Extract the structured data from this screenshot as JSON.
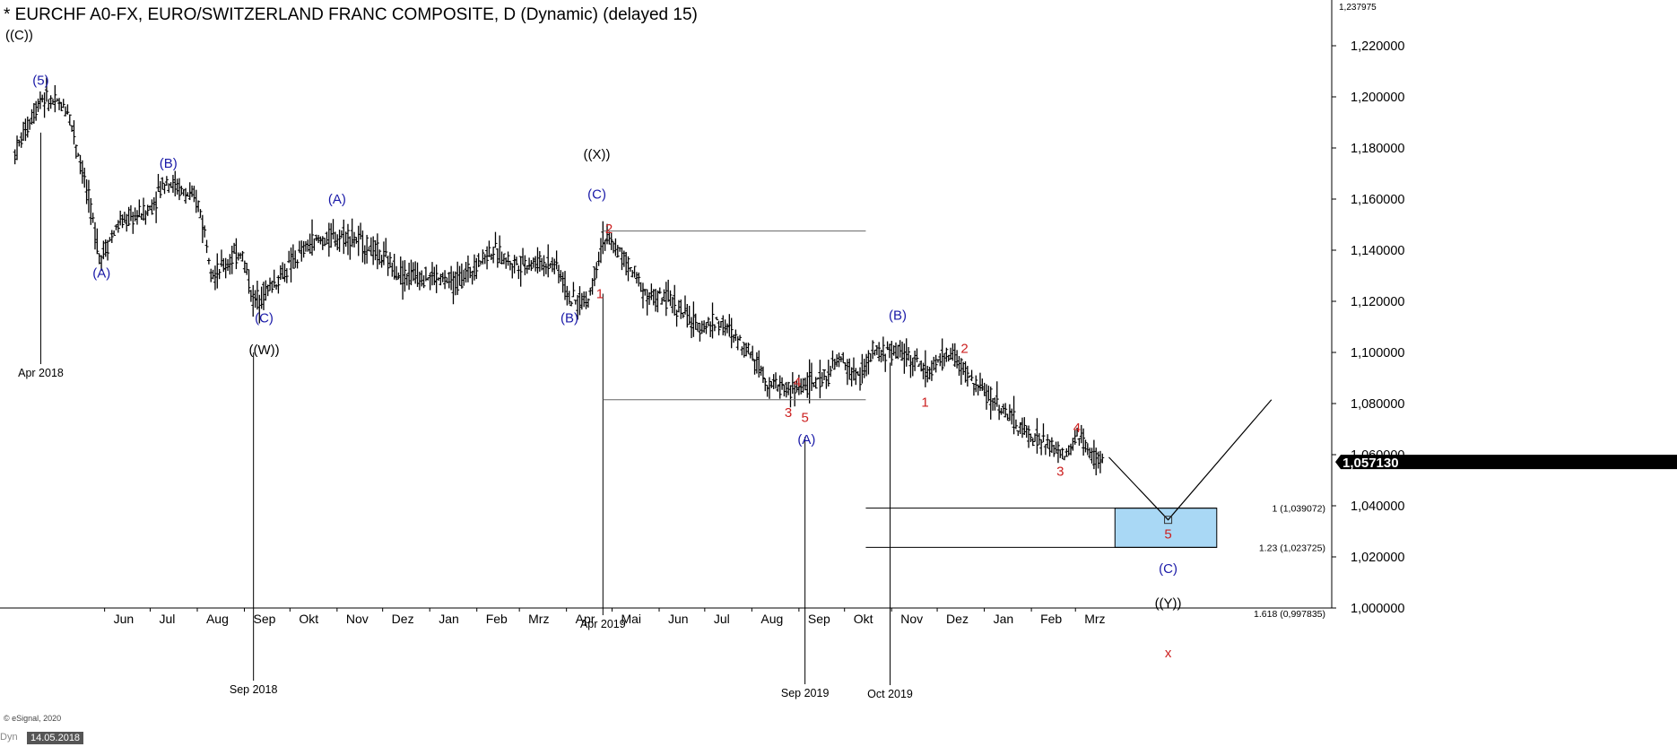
{
  "header": {
    "title": "* EURCHF A0-FX, EURO/SWITZERLAND FRANC COMPOSITE, D (Dynamic) (delayed 15)",
    "degree_label": "((C))"
  },
  "footer": {
    "credit": "© eSignal, 2020",
    "mode": "Dyn",
    "cursor_date": "14.05.2018"
  },
  "colors": {
    "price_bars": "#000000",
    "wave_blue": "#1a1aa8",
    "wave_red": "#cc1f1f",
    "wave_black": "#000000",
    "target_zone": "#a9d8f5",
    "last_price_bg": "#000000",
    "last_price_text": "#ffffff"
  },
  "chart_data": {
    "type": "ohlc",
    "instrument": "EURCHF",
    "ylim": [
      1.0,
      1.2379
    ],
    "y_ticks": [
      "1,000000",
      "1,020000",
      "1,040000",
      "1,060000",
      "1,080000",
      "1,100000",
      "1,120000",
      "1,140000",
      "1,160000",
      "1,180000",
      "1,200000",
      "1,220000"
    ],
    "y_tick_values": [
      1.0,
      1.02,
      1.04,
      1.06,
      1.08,
      1.1,
      1.12,
      1.14,
      1.16,
      1.18,
      1.2,
      1.22
    ],
    "top_price_label": "1,237975",
    "last_price_label": "1,057130",
    "last_price": 1.05713,
    "x_ticks": [
      "Jun",
      "Jul",
      "Aug",
      "Sep",
      "Okt",
      "Nov",
      "Dez",
      "Jan",
      "Feb",
      "Mrz",
      "Apr",
      "Mai",
      "Jun",
      "Jul",
      "Aug",
      "Sep",
      "Okt",
      "Nov",
      "Dez",
      "Jan",
      "Feb",
      "Mrz"
    ],
    "price_path": [
      [
        "2018-04-03",
        1.178
      ],
      [
        "2018-04-20",
        1.2
      ],
      [
        "2018-05-08",
        1.195
      ],
      [
        "2018-05-18",
        1.17
      ],
      [
        "2018-05-29",
        1.137
      ],
      [
        "2018-06-10",
        1.15
      ],
      [
        "2018-07-01",
        1.156
      ],
      [
        "2018-07-11",
        1.168
      ],
      [
        "2018-08-02",
        1.158
      ],
      [
        "2018-08-12",
        1.13
      ],
      [
        "2018-08-30",
        1.14
      ],
      [
        "2018-09-07",
        1.12
      ],
      [
        "2018-09-22",
        1.128
      ],
      [
        "2018-10-15",
        1.143
      ],
      [
        "2018-11-08",
        1.146
      ],
      [
        "2018-11-25",
        1.14
      ],
      [
        "2018-12-15",
        1.13
      ],
      [
        "2018-12-31",
        1.13
      ],
      [
        "2019-01-18",
        1.127
      ],
      [
        "2019-02-10",
        1.14
      ],
      [
        "2019-02-25",
        1.135
      ],
      [
        "2019-03-25",
        1.135
      ],
      [
        "2019-04-04",
        1.12
      ],
      [
        "2019-04-15",
        1.12
      ],
      [
        "2019-04-25",
        1.145
      ],
      [
        "2019-05-05",
        1.14
      ],
      [
        "2019-05-25",
        1.122
      ],
      [
        "2019-06-10",
        1.12
      ],
      [
        "2019-06-25",
        1.11
      ],
      [
        "2019-07-10",
        1.112
      ],
      [
        "2019-08-01",
        1.1
      ],
      [
        "2019-08-12",
        1.088
      ],
      [
        "2019-08-28",
        1.085
      ],
      [
        "2019-09-05",
        1.088
      ],
      [
        "2019-09-14",
        1.088
      ],
      [
        "2019-09-28",
        1.097
      ],
      [
        "2019-10-10",
        1.09
      ],
      [
        "2019-10-20",
        1.1
      ],
      [
        "2019-11-10",
        1.1
      ],
      [
        "2019-11-25",
        1.092
      ],
      [
        "2019-12-10",
        1.1
      ],
      [
        "2019-12-25",
        1.088
      ],
      [
        "2020-01-10",
        1.08
      ],
      [
        "2020-01-25",
        1.07
      ],
      [
        "2020-02-05",
        1.066
      ],
      [
        "2020-02-25",
        1.059
      ],
      [
        "2020-03-03",
        1.069
      ],
      [
        "2020-03-10",
        1.06
      ],
      [
        "2020-03-20",
        1.057
      ]
    ],
    "date_markers": [
      {
        "label": "Apr 2018",
        "date": "2018-04-20",
        "price": 1.186
      },
      {
        "label": "Sep 2018",
        "date": "2018-09-07",
        "price": 1.1
      },
      {
        "label": "Apr 2019",
        "date": "2019-04-25",
        "price": 1.123
      },
      {
        "label": "Sep 2019",
        "date": "2019-09-05",
        "price": 1.067
      },
      {
        "label": "Oct 2019",
        "date": "2019-10-31",
        "price": 1.096
      }
    ],
    "wave_labels": [
      {
        "text": "(5)",
        "date": "2018-04-20",
        "price": 1.2065,
        "color": "blue"
      },
      {
        "text": "(A)",
        "date": "2018-05-30",
        "price": 1.131,
        "color": "blue"
      },
      {
        "text": "(B)",
        "date": "2018-07-13",
        "price": 1.174,
        "color": "blue"
      },
      {
        "text": "(A)",
        "date": "2018-11-01",
        "price": 1.16,
        "color": "blue"
      },
      {
        "text": "(C)",
        "date": "2018-09-14",
        "price": 1.1135,
        "color": "blue"
      },
      {
        "text": "((W))",
        "date": "2018-09-14",
        "price": 1.101,
        "color": "black"
      },
      {
        "text": "((X))",
        "date": "2019-04-21",
        "price": 1.1775,
        "color": "black"
      },
      {
        "text": "(C)",
        "date": "2019-04-21",
        "price": 1.162,
        "color": "blue"
      },
      {
        "text": "2",
        "date": "2019-04-29",
        "price": 1.1485,
        "color": "red"
      },
      {
        "text": "1",
        "date": "2019-04-23",
        "price": 1.123,
        "color": "red"
      },
      {
        "text": "(B)",
        "date": "2019-04-03",
        "price": 1.1135,
        "color": "blue"
      },
      {
        "text": "3",
        "date": "2019-08-25",
        "price": 1.0765,
        "color": "red"
      },
      {
        "text": "4",
        "date": "2019-08-31",
        "price": 1.0885,
        "color": "red"
      },
      {
        "text": "5",
        "date": "2019-09-05",
        "price": 1.0745,
        "color": "red"
      },
      {
        "text": "(A)",
        "date": "2019-09-06",
        "price": 1.066,
        "color": "blue"
      },
      {
        "text": "(B)",
        "date": "2019-11-05",
        "price": 1.1145,
        "color": "blue"
      },
      {
        "text": "1",
        "date": "2019-11-23",
        "price": 1.0805,
        "color": "red"
      },
      {
        "text": "2",
        "date": "2019-12-19",
        "price": 1.1015,
        "color": "red"
      },
      {
        "text": "3",
        "date": "2020-02-20",
        "price": 1.0535,
        "color": "red"
      },
      {
        "text": "4",
        "date": "2020-03-02",
        "price": 1.0705,
        "color": "red"
      },
      {
        "text": "5",
        "date": "2020-05-01",
        "price": 1.029,
        "color": "red"
      },
      {
        "text": "(C)",
        "date": "2020-05-01",
        "price": 1.0155,
        "color": "blue"
      },
      {
        "text": "((Y))",
        "date": "2020-05-01",
        "price": 1.002,
        "color": "black"
      },
      {
        "text": "x",
        "date": "2020-05-01",
        "price": 0.9825,
        "color": "red"
      }
    ],
    "horizontal_levels": [
      {
        "price": 1.1475,
        "from": "2019-04-25",
        "to": "2019-10-15"
      },
      {
        "price": 1.0815,
        "from": "2019-04-25",
        "to": "2019-10-15"
      }
    ],
    "projection_path": [
      [
        "2020-03-23",
        1.059
      ],
      [
        "2020-05-01",
        1.0345
      ],
      [
        "2020-07-08",
        1.0815
      ]
    ],
    "target_zone": {
      "from": "2020-03-27",
      "to": "2020-06-02",
      "top": 1.039072,
      "bottom": 1.023725
    },
    "fib_levels": [
      {
        "label": "1 (1,039072)",
        "price": 1.039072,
        "from": "2019-10-15",
        "to": "2020-06-02"
      },
      {
        "label": "1.23 (1,023725)",
        "price": 1.023725,
        "from": "2019-10-15",
        "to": "2020-06-02"
      },
      {
        "label": "1.618 (0,997835)",
        "price": 0.997835,
        "from": null,
        "to": null
      }
    ]
  }
}
